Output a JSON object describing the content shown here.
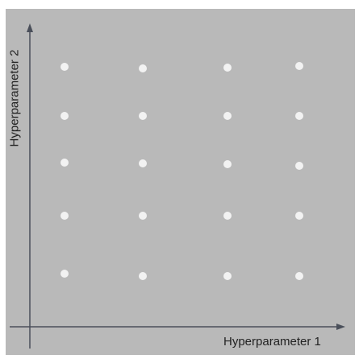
{
  "diagram": {
    "x_axis_label": "Hyperparameter 1",
    "y_axis_label": "Hyperparameter 2",
    "colors": {
      "background": "#b9b9b9",
      "axis": "#4a4f5a",
      "point": "#f2f2f2"
    },
    "grid": {
      "columns": 4,
      "rows": 5
    }
  }
}
